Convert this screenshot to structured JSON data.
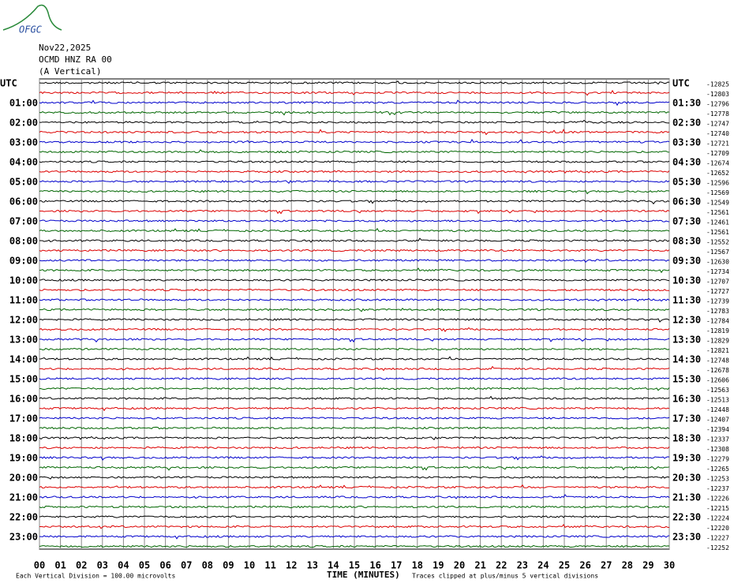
{
  "header": {
    "logo": "OFGC",
    "date": "Nov22,2025",
    "station": "OCMD HNZ RA 00",
    "component": "(A Vertical)"
  },
  "left_labels": [
    "UTC",
    "01:00",
    "02:00",
    "03:00",
    "04:00",
    "05:00",
    "06:00",
    "07:00",
    "08:00",
    "09:00",
    "10:00",
    "11:00",
    "12:00",
    "13:00",
    "14:00",
    "15:00",
    "16:00",
    "17:00",
    "18:00",
    "19:00",
    "20:00",
    "21:00",
    "22:00",
    "23:00"
  ],
  "right_labels": [
    "UTC",
    "01:30",
    "02:30",
    "03:30",
    "04:30",
    "05:30",
    "06:30",
    "07:30",
    "08:30",
    "09:30",
    "10:30",
    "11:30",
    "12:30",
    "13:30",
    "14:30",
    "15:30",
    "16:30",
    "17:30",
    "18:30",
    "19:30",
    "20:30",
    "21:30",
    "22:30",
    "23:30"
  ],
  "trace_offsets": [
    "-12825",
    "-12803",
    "-12796",
    "-12778",
    "-12747",
    "-12740",
    "-12721",
    "-12709",
    "-12674",
    "-12652",
    "-12596",
    "-12569",
    "-12549",
    "-12561",
    "-12461",
    "-12561",
    "-12552",
    "-12567",
    "-12630",
    "-12734",
    "-12707",
    "-12727",
    "-12739",
    "-12783",
    "-12784",
    "-12819",
    "-12829",
    "-12821",
    "-12748",
    "-12678",
    "-12606",
    "-12563",
    "-12513",
    "-12448",
    "-12407",
    "-12394",
    "-12337",
    "-12308",
    "-12279",
    "-12265",
    "-12253",
    "-12237",
    "-12226",
    "-12215",
    "-12224",
    "-12220",
    "-12227",
    "-12252"
  ],
  "x_ticks": [
    "00",
    "01",
    "02",
    "03",
    "04",
    "05",
    "06",
    "07",
    "08",
    "09",
    "10",
    "11",
    "12",
    "13",
    "14",
    "15",
    "16",
    "17",
    "18",
    "19",
    "20",
    "21",
    "22",
    "23",
    "24",
    "25",
    "26",
    "27",
    "28",
    "29",
    "30"
  ],
  "footer": {
    "scale": "Each Vertical Division =  100.00 microvolts",
    "axis_title": "TIME (MINUTES)",
    "clip_note": "Traces clipped at plus/minus 5 vertical divisions"
  }
}
